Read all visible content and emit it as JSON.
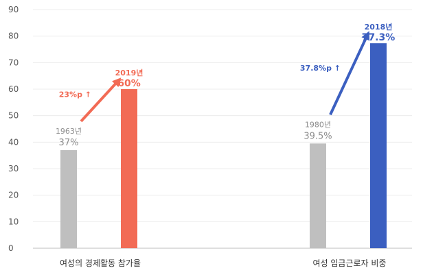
{
  "chart_data": {
    "type": "bar",
    "ylim": [
      0,
      90
    ],
    "yticks": [
      0,
      10,
      20,
      30,
      40,
      50,
      60,
      70,
      80,
      90
    ],
    "groups": [
      {
        "category": "여성의 경제활동 참가율",
        "bars": [
          {
            "year_label": "1963년",
            "value": 37,
            "value_label": "37%",
            "color": "#bfbfbf"
          },
          {
            "year_label": "2019년",
            "value": 60,
            "value_label": "60%",
            "color": "#f26b55"
          }
        ],
        "change_label": "23%p ↑",
        "change_color": "#f26b55"
      },
      {
        "category": "여성 임금근로자 비중",
        "bars": [
          {
            "year_label": "1980년",
            "value": 39.5,
            "value_label": "39.5%",
            "color": "#bfbfbf"
          },
          {
            "year_label": "2018년",
            "value": 77.3,
            "value_label": "77.3%",
            "color": "#3b5fc0"
          }
        ],
        "change_label": "37.8%p ↑",
        "change_color": "#3b5fc0"
      }
    ],
    "grid": true,
    "legend": "none"
  }
}
